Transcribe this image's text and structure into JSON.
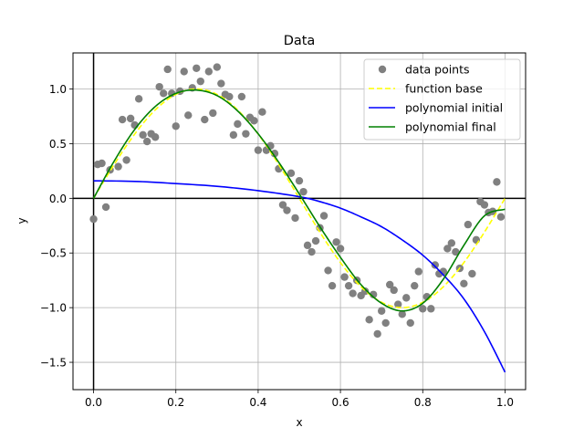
{
  "chart_data": {
    "type": "scatter",
    "title": "Data",
    "xlabel": "x",
    "ylabel": "y",
    "xlim": [
      -0.05,
      1.05
    ],
    "ylim": [
      -1.75,
      1.33
    ],
    "xticks": [
      0.0,
      0.2,
      0.4,
      0.6,
      0.8,
      1.0
    ],
    "xtick_labels": [
      "0.0",
      "0.2",
      "0.4",
      "0.6",
      "0.8",
      "1.0"
    ],
    "yticks": [
      -1.5,
      -1.0,
      -0.5,
      0.0,
      0.5,
      1.0
    ],
    "ytick_labels": [
      "−1.5",
      "−1.0",
      "−0.5",
      "0.0",
      "0.5",
      "1.0"
    ],
    "grid": true,
    "legend_position": "top-right",
    "reference_lines": {
      "horizontal_y": 0.0,
      "vertical_x": 0.0
    },
    "series": [
      {
        "name": "data points",
        "kind": "scatter",
        "color": "#808080",
        "points": [
          [
            0.0,
            -0.19
          ],
          [
            0.01,
            0.31
          ],
          [
            0.02,
            0.32
          ],
          [
            0.03,
            -0.08
          ],
          [
            0.04,
            0.26
          ],
          [
            0.06,
            0.29
          ],
          [
            0.07,
            0.72
          ],
          [
            0.08,
            0.35
          ],
          [
            0.09,
            0.73
          ],
          [
            0.1,
            0.67
          ],
          [
            0.11,
            0.91
          ],
          [
            0.12,
            0.58
          ],
          [
            0.13,
            0.52
          ],
          [
            0.14,
            0.59
          ],
          [
            0.15,
            0.56
          ],
          [
            0.16,
            1.02
          ],
          [
            0.17,
            0.96
          ],
          [
            0.18,
            1.18
          ],
          [
            0.19,
            0.96
          ],
          [
            0.2,
            0.66
          ],
          [
            0.21,
            0.98
          ],
          [
            0.22,
            1.16
          ],
          [
            0.23,
            0.76
          ],
          [
            0.24,
            1.01
          ],
          [
            0.25,
            1.19
          ],
          [
            0.26,
            1.07
          ],
          [
            0.27,
            0.72
          ],
          [
            0.28,
            1.16
          ],
          [
            0.29,
            0.78
          ],
          [
            0.3,
            1.2
          ],
          [
            0.31,
            1.05
          ],
          [
            0.32,
            0.95
          ],
          [
            0.33,
            0.93
          ],
          [
            0.34,
            0.58
          ],
          [
            0.35,
            0.68
          ],
          [
            0.36,
            0.93
          ],
          [
            0.37,
            0.59
          ],
          [
            0.38,
            0.74
          ],
          [
            0.39,
            0.71
          ],
          [
            0.4,
            0.44
          ],
          [
            0.41,
            0.79
          ],
          [
            0.42,
            0.44
          ],
          [
            0.43,
            0.48
          ],
          [
            0.44,
            0.41
          ],
          [
            0.45,
            0.27
          ],
          [
            0.46,
            -0.06
          ],
          [
            0.47,
            -0.11
          ],
          [
            0.48,
            0.23
          ],
          [
            0.49,
            -0.18
          ],
          [
            0.5,
            0.16
          ],
          [
            0.51,
            0.06
          ],
          [
            0.52,
            -0.43
          ],
          [
            0.53,
            -0.49
          ],
          [
            0.54,
            -0.39
          ],
          [
            0.55,
            -0.27
          ],
          [
            0.56,
            -0.16
          ],
          [
            0.57,
            -0.66
          ],
          [
            0.58,
            -0.8
          ],
          [
            0.59,
            -0.4
          ],
          [
            0.6,
            -0.46
          ],
          [
            0.61,
            -0.72
          ],
          [
            0.62,
            -0.8
          ],
          [
            0.63,
            -0.87
          ],
          [
            0.64,
            -0.75
          ],
          [
            0.65,
            -0.89
          ],
          [
            0.66,
            -0.85
          ],
          [
            0.67,
            -1.11
          ],
          [
            0.68,
            -0.88
          ],
          [
            0.69,
            -1.24
          ],
          [
            0.7,
            -1.03
          ],
          [
            0.71,
            -1.14
          ],
          [
            0.72,
            -0.79
          ],
          [
            0.73,
            -0.84
          ],
          [
            0.74,
            -0.97
          ],
          [
            0.75,
            -1.06
          ],
          [
            0.76,
            -0.91
          ],
          [
            0.77,
            -1.14
          ],
          [
            0.78,
            -0.8
          ],
          [
            0.79,
            -0.67
          ],
          [
            0.8,
            -1.01
          ],
          [
            0.81,
            -0.9
          ],
          [
            0.82,
            -1.01
          ],
          [
            0.83,
            -0.61
          ],
          [
            0.84,
            -0.69
          ],
          [
            0.85,
            -0.67
          ],
          [
            0.86,
            -0.46
          ],
          [
            0.87,
            -0.41
          ],
          [
            0.88,
            -0.49
          ],
          [
            0.89,
            -0.64
          ],
          [
            0.9,
            -0.78
          ],
          [
            0.91,
            -0.24
          ],
          [
            0.92,
            -0.69
          ],
          [
            0.93,
            -0.38
          ],
          [
            0.94,
            -0.03
          ],
          [
            0.95,
            -0.06
          ],
          [
            0.96,
            -0.13
          ],
          [
            0.97,
            -0.12
          ],
          [
            0.98,
            0.15
          ],
          [
            0.99,
            -0.17
          ]
        ]
      },
      {
        "name": "function base",
        "kind": "line",
        "style": "dashed",
        "color": "#ffff00",
        "formula": "sin(2*pi*x)"
      },
      {
        "name": "polynomial initial",
        "kind": "line",
        "style": "solid",
        "color": "#0000ff",
        "x": [
          0.0,
          0.1,
          0.2,
          0.3,
          0.4,
          0.5,
          0.55,
          0.6,
          0.65,
          0.7,
          0.75,
          0.8,
          0.85,
          0.9,
          0.95,
          1.0
        ],
        "y": [
          0.16,
          0.155,
          0.135,
          0.11,
          0.07,
          0.015,
          -0.03,
          -0.09,
          -0.17,
          -0.26,
          -0.38,
          -0.52,
          -0.7,
          -0.92,
          -1.22,
          -1.59
        ]
      },
      {
        "name": "polynomial final",
        "kind": "line",
        "style": "solid",
        "color": "#008000",
        "x": [
          0.0,
          0.05,
          0.1,
          0.15,
          0.2,
          0.25,
          0.3,
          0.35,
          0.4,
          0.45,
          0.5,
          0.55,
          0.6,
          0.65,
          0.7,
          0.75,
          0.8,
          0.85,
          0.9,
          0.95,
          1.0
        ],
        "y": [
          0.0,
          0.34,
          0.63,
          0.84,
          0.96,
          0.99,
          0.94,
          0.8,
          0.59,
          0.33,
          0.04,
          -0.26,
          -0.54,
          -0.79,
          -0.96,
          -1.03,
          -0.96,
          -0.74,
          -0.43,
          -0.16,
          -0.1
        ]
      }
    ]
  }
}
